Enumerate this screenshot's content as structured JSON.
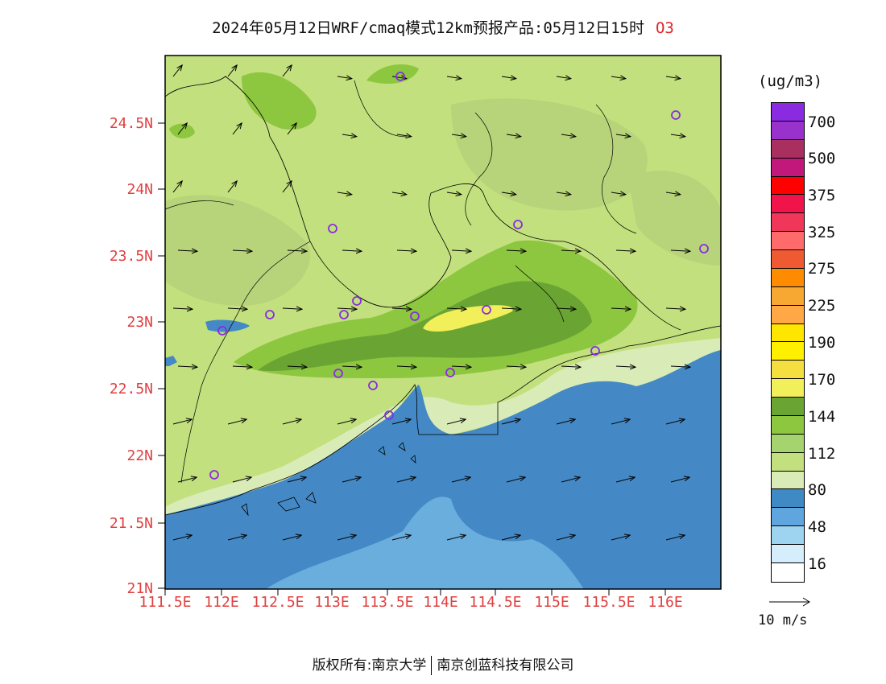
{
  "title": {
    "text": "2024年05月12日WRF/cmaq模式12km预报产品:05月12日15时",
    "species": "O3"
  },
  "axes": {
    "y_labels": [
      "24.5N",
      "24N",
      "23.5N",
      "23N",
      "22.5N",
      "22N",
      "21.5N",
      "21N"
    ],
    "x_labels": [
      "111.5E",
      "112E",
      "112.5E",
      "113E",
      "113.5E",
      "114E",
      "114.5E",
      "115E",
      "115.5E",
      "116E"
    ]
  },
  "legend": {
    "unit": "(ug/m3)",
    "colors": [
      "#8a2be2",
      "#9932cc",
      "#a9305e",
      "#c2187c",
      "#ff0000",
      "#f0144a",
      "#f0375a",
      "#ff6b6b",
      "#f05a32",
      "#ff8c00",
      "#f7a833",
      "#ffa845",
      "#ffe600",
      "#fff000",
      "#f5de40",
      "#f2f05a",
      "#6aa534",
      "#8dc63f",
      "#a5d36e",
      "#c2e07d",
      "#d9ecb8",
      "#3f8ac4",
      "#5ea6dd",
      "#9ed4f0",
      "#d6eefb",
      "#ffffff"
    ],
    "labels": [
      "700",
      "500",
      "375",
      "325",
      "275",
      "225",
      "190",
      "170",
      "144",
      "112",
      "80",
      "48",
      "16"
    ]
  },
  "wind_reference": {
    "label": "10 m/s"
  },
  "footer": {
    "left": "版权所有:南京大学",
    "right": "南京创蓝科技有限公司"
  },
  "map": {
    "land_base": "#c2e07d",
    "sea": "#4489c5",
    "station_color": "#8a2be2"
  }
}
